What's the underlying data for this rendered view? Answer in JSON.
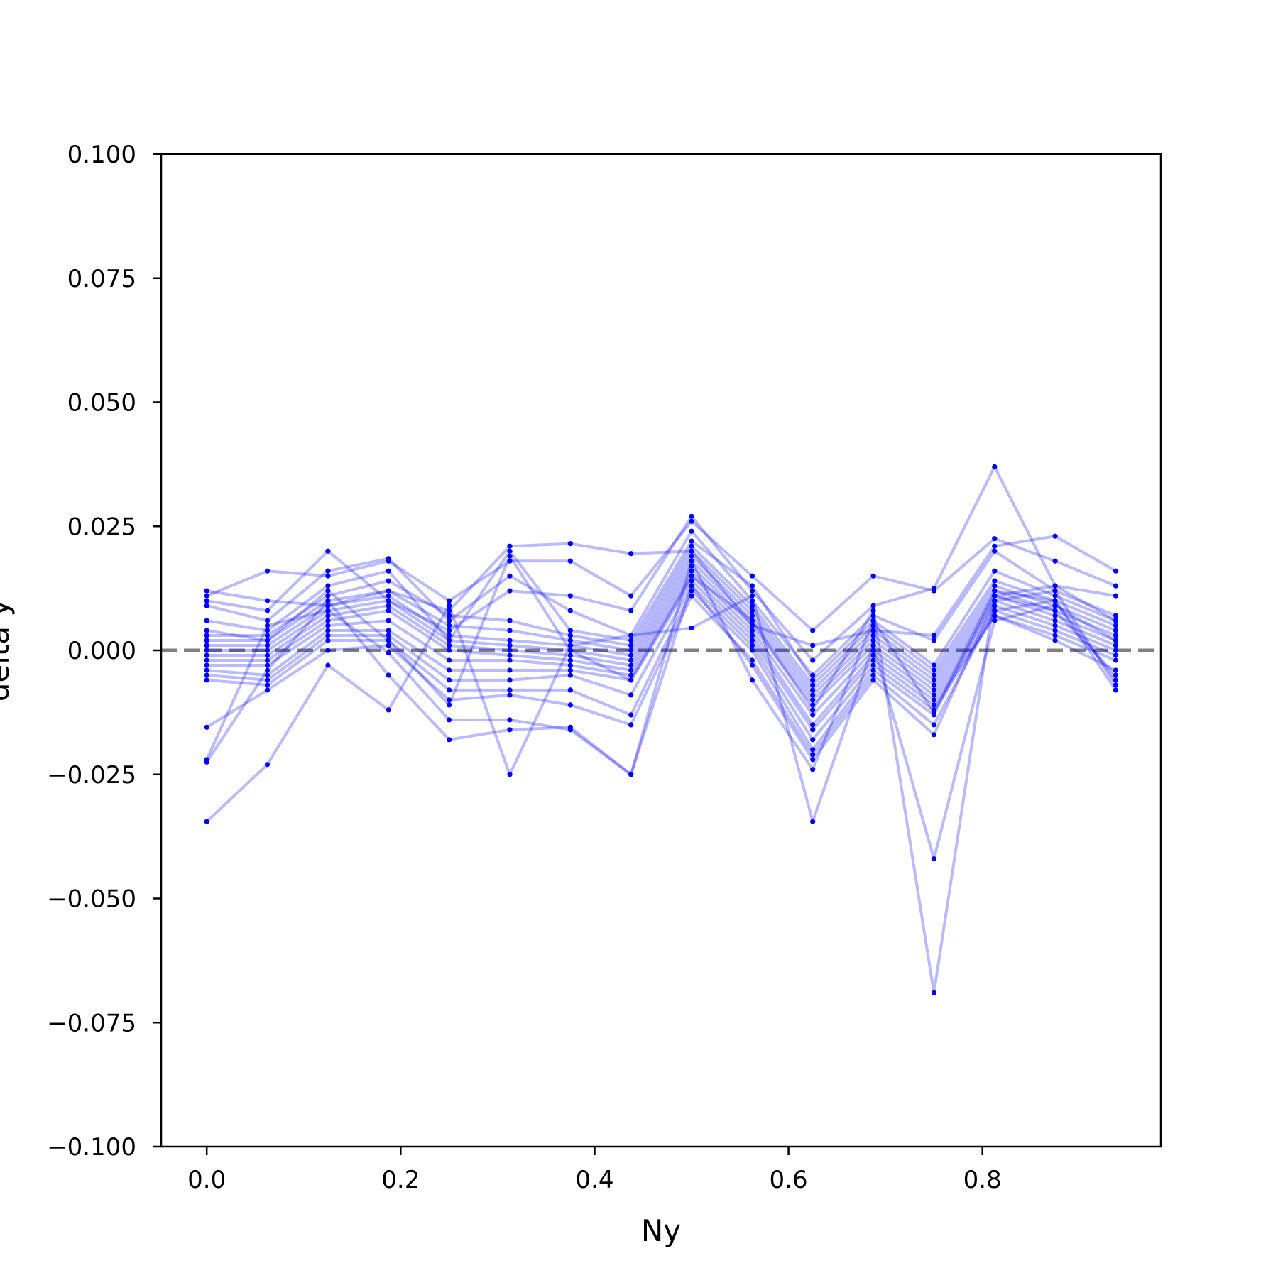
{
  "chart_data": {
    "type": "line",
    "xlabel": "Ny",
    "ylabel": "delta y",
    "xlim": [
      -0.047,
      0.984
    ],
    "ylim": [
      -0.1,
      0.1
    ],
    "xticks": [
      "0.0",
      "0.2",
      "0.4",
      "0.6",
      "0.8"
    ],
    "xtick_values": [
      0.0,
      0.2,
      0.4,
      0.6,
      0.8
    ],
    "yticks": [
      "−0.100",
      "−0.075",
      "−0.050",
      "−0.025",
      "0.000",
      "0.025",
      "0.050",
      "0.075",
      "0.100"
    ],
    "ytick_values": [
      -0.1,
      -0.075,
      -0.05,
      -0.025,
      0.0,
      0.025,
      0.05,
      0.075,
      0.1
    ],
    "reference_line": {
      "y": 0.0,
      "style": "dashed",
      "color": "#808080"
    },
    "series_color": "#0000ff",
    "x": [
      0.0,
      0.0625,
      0.125,
      0.1875,
      0.25,
      0.3125,
      0.375,
      0.4375,
      0.5,
      0.5625,
      0.625,
      0.6875,
      0.75,
      0.8125,
      0.875,
      0.9375
    ],
    "series": [
      {
        "values": [
          0.012,
          0.01,
          0.009,
          0.012,
          0.008,
          0.021,
          0.0215,
          0.0195,
          0.02,
          0.005,
          0.001,
          0.004,
          0.003,
          0.021,
          0.023,
          0.016
        ]
      },
      {
        "values": [
          0.011,
          0.016,
          0.015,
          0.018,
          0.01,
          0.018,
          0.018,
          0.011,
          0.026,
          0.015,
          0.004,
          0.015,
          0.012,
          0.0225,
          0.018,
          0.013
        ]
      },
      {
        "values": [
          0.01,
          0.008,
          0.02,
          0.01,
          0.004,
          0.012,
          0.011,
          0.008,
          0.027,
          0.012,
          -0.002,
          0.009,
          0.0125,
          0.037,
          0.013,
          0.011
        ]
      },
      {
        "values": [
          0.009,
          0.006,
          0.016,
          0.0185,
          0.006,
          0.015,
          0.008,
          0.003,
          0.024,
          0.01,
          -0.005,
          0.007,
          0.002,
          0.02,
          0.012,
          0.007
        ]
      },
      {
        "values": [
          0.006,
          0.004,
          0.013,
          0.016,
          0.002,
          0.02,
          0.004,
          0.002,
          0.022,
          0.013,
          -0.006,
          0.006,
          -0.003,
          0.016,
          0.011,
          0.006
        ]
      },
      {
        "values": [
          0.003,
          0.003,
          0.011,
          0.014,
          0.007,
          0.006,
          0.003,
          0.001,
          0.021,
          0.009,
          -0.007,
          0.005,
          -0.004,
          0.014,
          0.01,
          0.005
        ]
      },
      {
        "values": [
          0.002,
          0.002,
          0.01,
          0.012,
          0.005,
          0.004,
          0.002,
          0.0,
          0.02,
          0.008,
          -0.008,
          0.004,
          -0.005,
          0.013,
          0.009,
          0.004
        ]
      },
      {
        "values": [
          0.001,
          0.001,
          0.009,
          0.011,
          0.003,
          0.002,
          0.001,
          -0.001,
          0.019,
          0.007,
          -0.009,
          0.003,
          -0.006,
          0.012,
          0.008,
          0.003
        ]
      },
      {
        "values": [
          0.0,
          0.0,
          0.008,
          0.01,
          0.002,
          0.001,
          0.0,
          -0.002,
          0.018,
          0.006,
          -0.01,
          0.002,
          -0.007,
          0.011,
          0.007,
          0.002
        ]
      },
      {
        "values": [
          -0.001,
          -0.001,
          0.007,
          0.009,
          0.001,
          0.0,
          -0.001,
          -0.003,
          0.017,
          0.005,
          -0.011,
          0.001,
          -0.008,
          0.01,
          0.006,
          0.001
        ]
      },
      {
        "values": [
          -0.002,
          -0.002,
          0.006,
          0.008,
          0.0,
          -0.001,
          -0.002,
          -0.004,
          0.016,
          0.004,
          -0.013,
          0.0,
          -0.009,
          0.009,
          0.005,
          0.0
        ]
      },
      {
        "values": [
          -0.003,
          -0.003,
          0.005,
          0.006,
          -0.002,
          -0.002,
          -0.003,
          -0.005,
          0.015,
          0.003,
          -0.015,
          -0.001,
          -0.01,
          0.008,
          0.004,
          -0.001
        ]
      },
      {
        "values": [
          -0.004,
          -0.005,
          0.004,
          0.004,
          -0.004,
          -0.004,
          -0.004,
          -0.006,
          0.014,
          0.002,
          -0.016,
          -0.002,
          -0.011,
          0.007,
          0.003,
          -0.002
        ]
      },
      {
        "values": [
          -0.005,
          -0.006,
          0.003,
          0.003,
          -0.006,
          -0.006,
          -0.005,
          -0.009,
          0.013,
          0.001,
          -0.018,
          -0.003,
          -0.012,
          0.007,
          0.002,
          -0.004
        ]
      },
      {
        "values": [
          -0.006,
          -0.007,
          0.002,
          0.002,
          -0.008,
          -0.008,
          -0.008,
          -0.013,
          0.012,
          0.0,
          -0.02,
          -0.004,
          -0.013,
          0.011,
          0.008,
          -0.005
        ]
      },
      {
        "values": [
          -0.0155,
          -0.008,
          0.0,
          0.001,
          -0.01,
          -0.009,
          -0.011,
          -0.015,
          0.011,
          -0.002,
          -0.021,
          -0.005,
          -0.015,
          0.008,
          0.01,
          -0.006
        ]
      },
      {
        "values": [
          -0.022,
          0.005,
          0.008,
          -0.0005,
          -0.014,
          -0.014,
          -0.016,
          -0.025,
          0.013,
          -0.003,
          -0.022,
          -0.006,
          -0.017,
          0.01,
          0.012,
          -0.007
        ]
      },
      {
        "values": [
          -0.0225,
          -0.004,
          0.01,
          -0.005,
          -0.018,
          -0.016,
          -0.0155,
          -0.025,
          0.018,
          -0.006,
          -0.024,
          0.006,
          -0.0125,
          0.012,
          0.01,
          -0.008
        ]
      },
      {
        "values": [
          -0.0345,
          -0.023,
          -0.003,
          -0.012,
          0.009,
          -0.025,
          0.001,
          0.003,
          0.0045,
          0.011,
          -0.0345,
          0.001,
          -0.042,
          0.006,
          0.009,
          0.002
        ]
      },
      {
        "values": [
          0.004,
          0.002,
          0.012,
          0.002,
          -0.011,
          0.019,
          0.0,
          -0.006,
          0.015,
          0.006,
          -0.012,
          0.008,
          -0.069,
          0.011,
          0.013,
          0.006
        ]
      }
    ]
  }
}
